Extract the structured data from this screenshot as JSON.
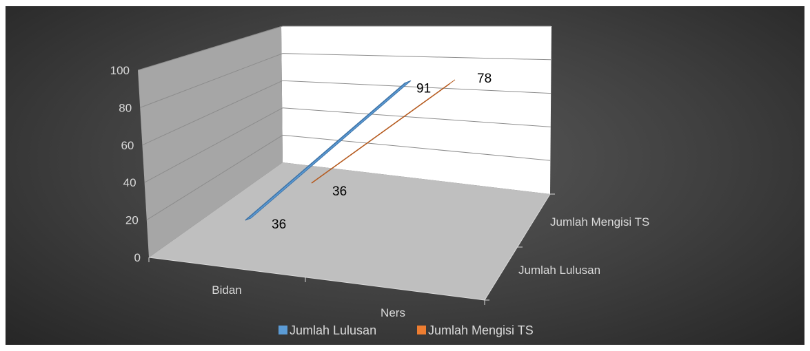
{
  "chart_data": {
    "type": "line",
    "view": "3d",
    "categories": [
      "Bidan",
      "Ners"
    ],
    "depth_labels": [
      "Jumlah Lulusan",
      "Jumlah Mengisi TS"
    ],
    "series": [
      {
        "name": "Jumlah Lulusan",
        "values": [
          36,
          91
        ],
        "labels": [
          "36",
          "91"
        ],
        "color": "#5b9bd5"
      },
      {
        "name": "Jumlah Mengisi TS",
        "values": [
          36,
          78
        ],
        "labels": [
          "36",
          "78"
        ],
        "color": "#ed7d31"
      }
    ],
    "yticks": [
      "0",
      "20",
      "40",
      "60",
      "80",
      "100"
    ],
    "ylim": [
      0,
      100
    ],
    "grid": true,
    "legend": "bottom",
    "background": "#404040"
  }
}
